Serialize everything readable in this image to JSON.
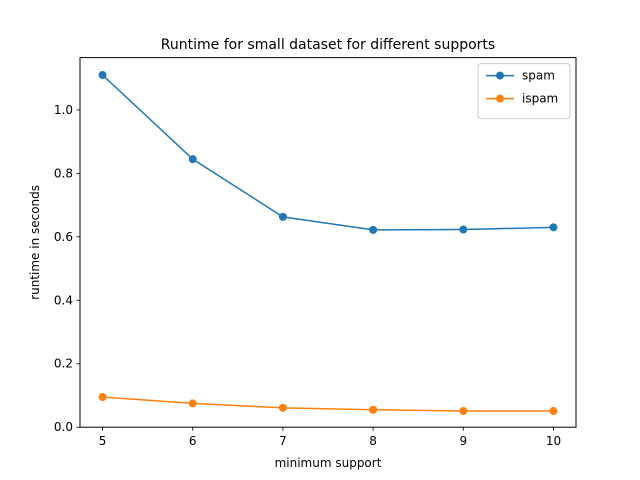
{
  "chart_data": {
    "type": "line",
    "title": "Runtime for small dataset for different supports",
    "xlabel": "minimum support",
    "ylabel": "runtime in seconds",
    "x": [
      5,
      6,
      7,
      8,
      9,
      10
    ],
    "x_ticks": [
      "5",
      "6",
      "7",
      "8",
      "9",
      "10"
    ],
    "y_ticks": [
      "0.0",
      "0.2",
      "0.4",
      "0.6",
      "0.8",
      "1.0"
    ],
    "xlim": [
      4.75,
      10.25
    ],
    "ylim": [
      0,
      1.165
    ],
    "grid": false,
    "legend_position": "top-right",
    "series": [
      {
        "name": "spam",
        "color": "#1f77b4",
        "marker": "circle",
        "values": [
          1.11,
          0.845,
          0.663,
          0.622,
          0.623,
          0.63
        ]
      },
      {
        "name": "ispam",
        "color": "#ff7f0e",
        "marker": "circle",
        "values": [
          0.095,
          0.075,
          0.061,
          0.055,
          0.051,
          0.051
        ]
      }
    ]
  }
}
